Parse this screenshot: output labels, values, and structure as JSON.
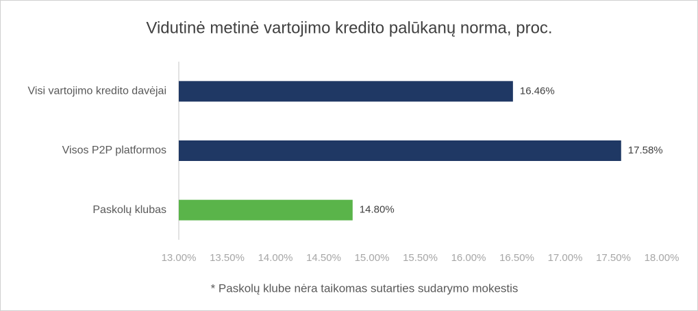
{
  "chart_data": {
    "type": "barh",
    "title": "Vidutinė metinė vartojimo kredito palūkanų norma, proc.",
    "categories": [
      "Visi vartojimo kredito davėjai",
      "Visos P2P platformos",
      "Paskolų klubas"
    ],
    "values": [
      16.46,
      17.58,
      14.8
    ],
    "value_labels": [
      "16.46%",
      "17.58%",
      "14.80%"
    ],
    "colors": [
      "#1f3864",
      "#1f3864",
      "#5ab44a"
    ],
    "xlim": [
      13,
      18
    ],
    "xticks": [
      {
        "value": 13,
        "label": "13.00%"
      },
      {
        "value": 13.5,
        "label": "13.50%"
      },
      {
        "value": 14,
        "label": "14.00%"
      },
      {
        "value": 14.5,
        "label": "14.50%"
      },
      {
        "value": 15,
        "label": "15.00%"
      },
      {
        "value": 15.5,
        "label": "15.50%"
      },
      {
        "value": 16,
        "label": "16.00%"
      },
      {
        "value": 16.5,
        "label": "16.50%"
      },
      {
        "value": 17,
        "label": "17.00%"
      },
      {
        "value": 17.5,
        "label": "17.50%"
      },
      {
        "value": 18,
        "label": "18.00%"
      }
    ],
    "annotation": "* Paskolų klube nėra taikomas sutarties sudarymo mokestis"
  }
}
